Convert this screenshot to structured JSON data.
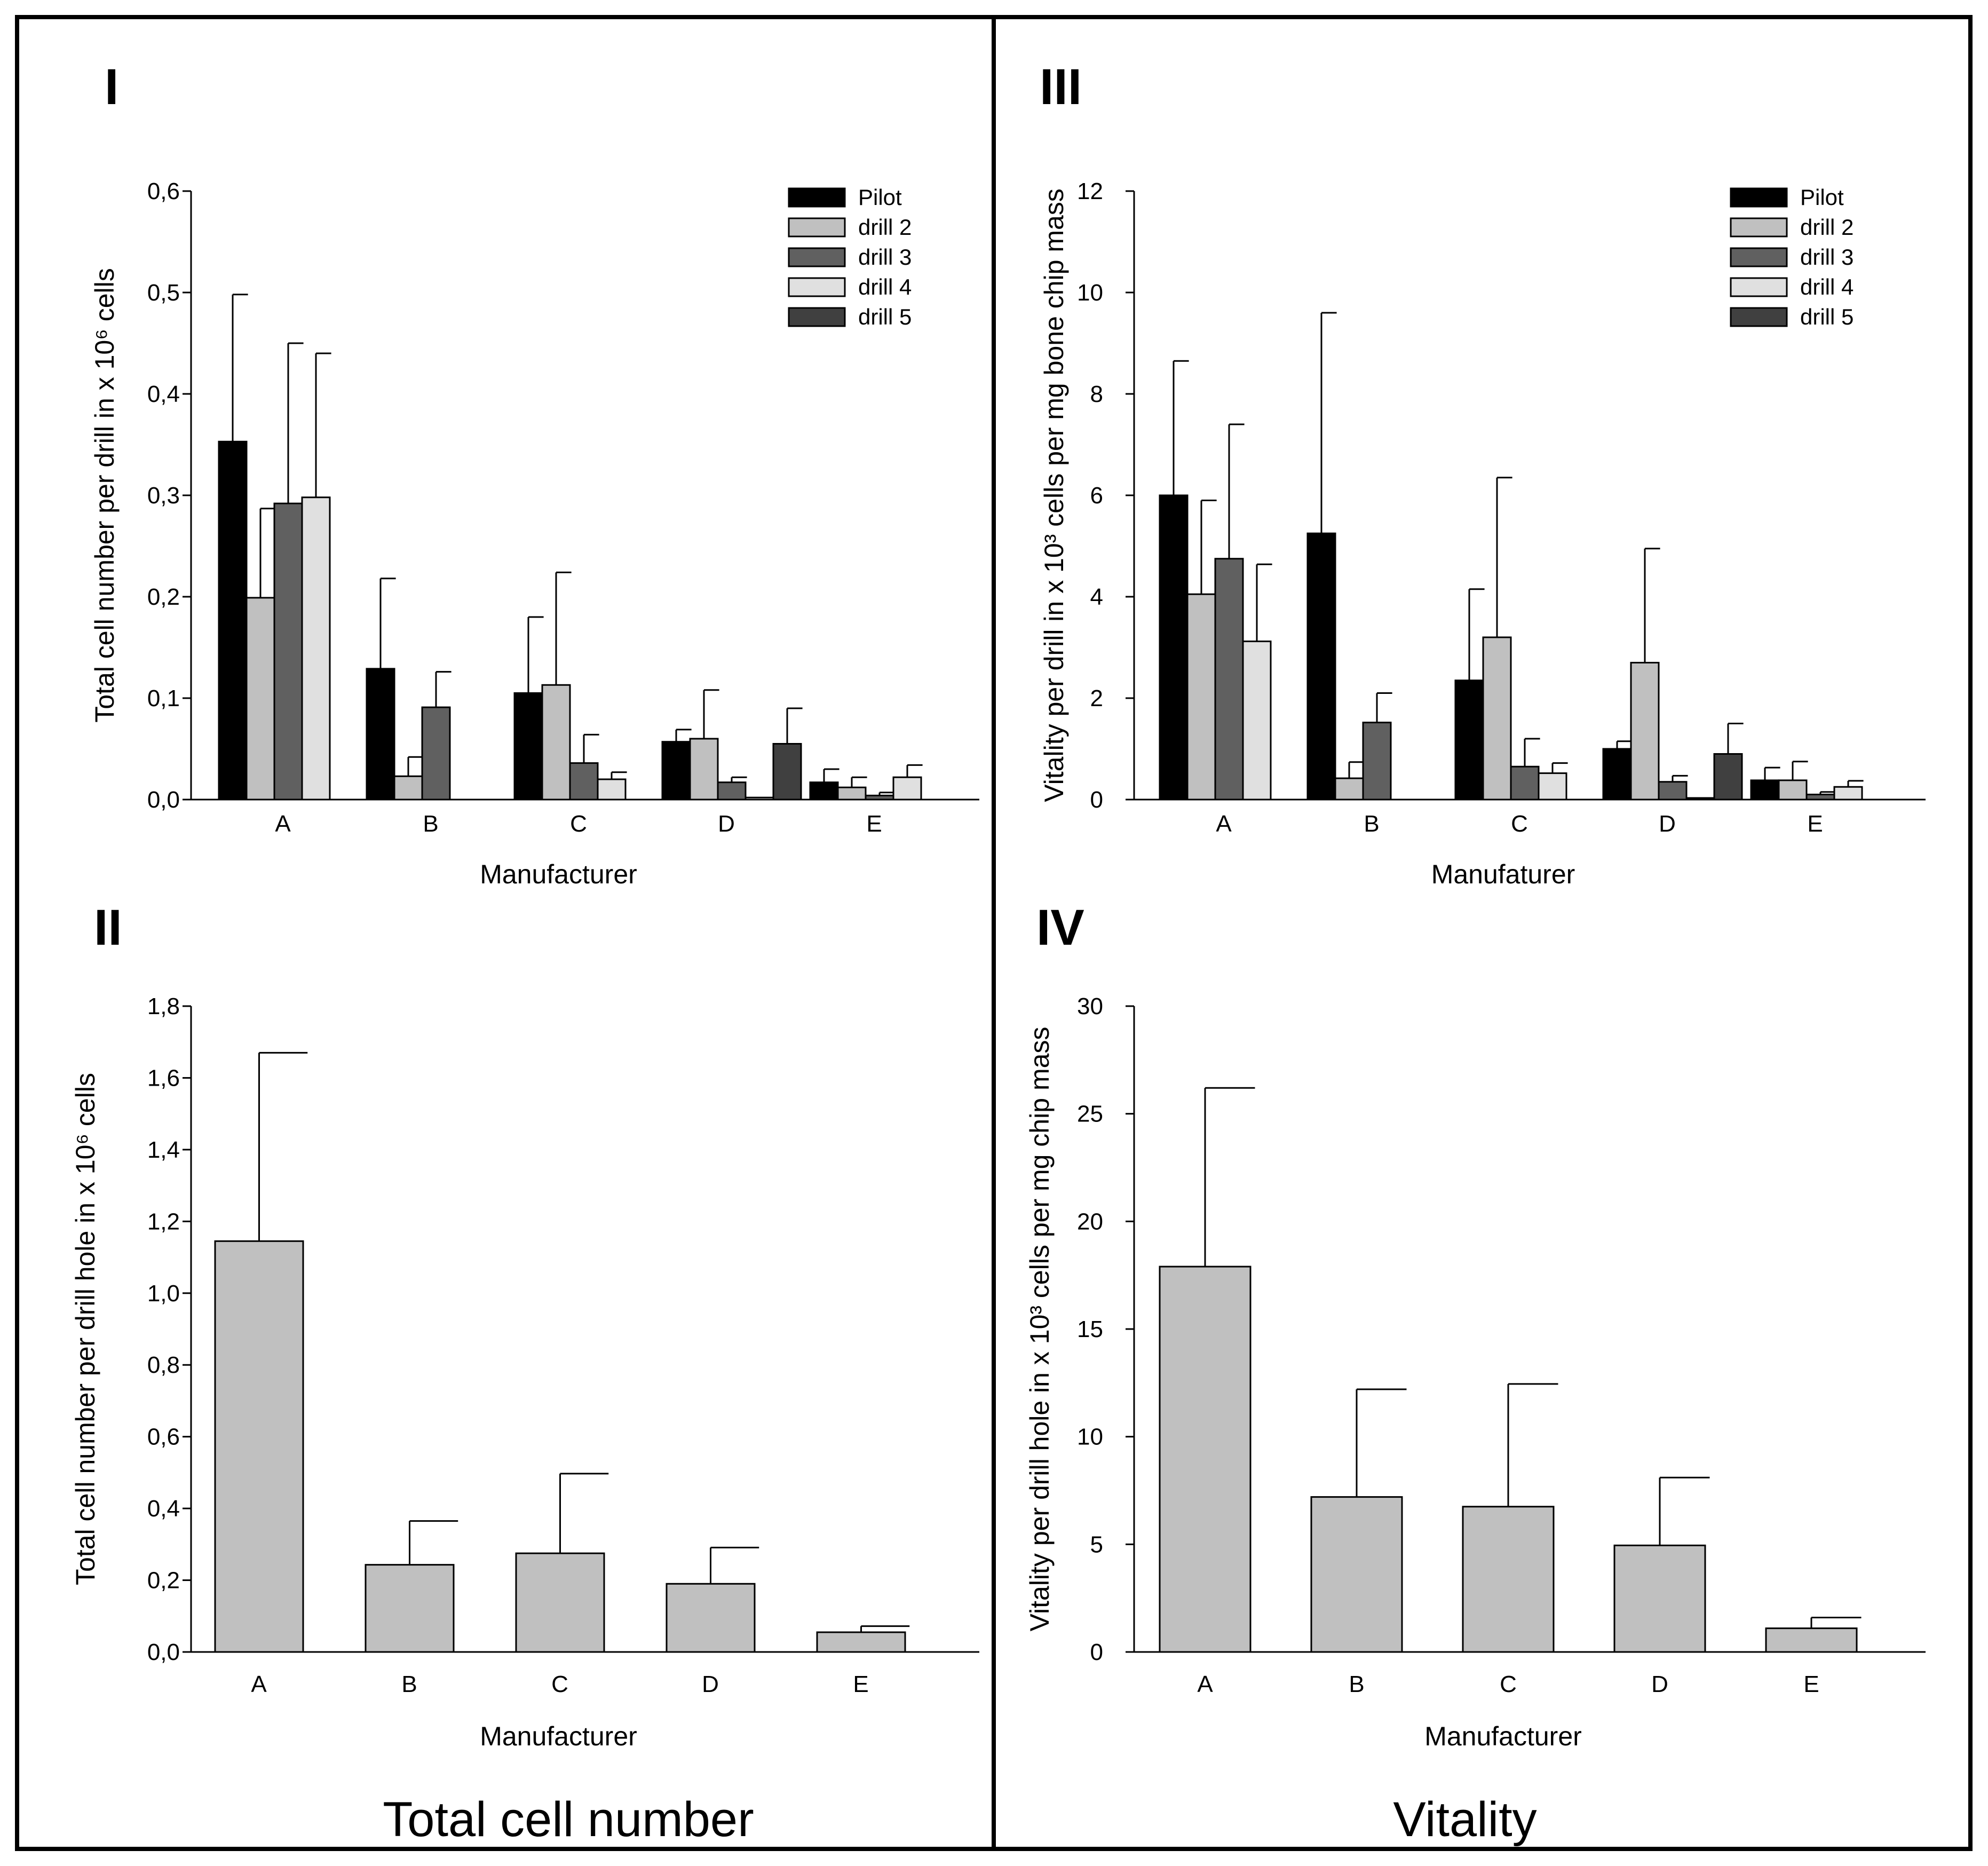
{
  "colors": {
    "Pilot": "#000000",
    "drill 2": "#c0c0c0",
    "drill 3": "#606060",
    "drill 4": "#e0e0e0",
    "drill 5": "#404040",
    "single": "#c0c0c0"
  },
  "captions": {
    "left": "Total cell number",
    "right": "Vitality"
  },
  "chart_data": [
    {
      "panel": "I",
      "type": "bar",
      "categories": [
        "A",
        "B",
        "C",
        "D",
        "E"
      ],
      "xlabel": "Manufacturer",
      "ylabel": "Total cell number per drill  in x 10⁶ cells",
      "ylim": [
        0,
        0.6
      ],
      "yticks": [
        "0,0",
        "0,1",
        "0,2",
        "0,3",
        "0,4",
        "0,5",
        "0,6"
      ],
      "ytick_values": [
        0,
        0.1,
        0.2,
        0.3,
        0.4,
        0.5,
        0.6
      ],
      "legend": [
        "Pilot",
        "drill 2",
        "drill 3",
        "drill 4",
        "drill 5"
      ],
      "legend_position": "top-right",
      "series": [
        {
          "name": "Pilot",
          "values": [
            0.353,
            0.129,
            0.105,
            0.057,
            0.017
          ],
          "errors": [
            0.145,
            0.089,
            0.075,
            0.012,
            0.013
          ]
        },
        {
          "name": "drill 2",
          "values": [
            0.199,
            0.023,
            0.113,
            0.06,
            0.012
          ],
          "errors": [
            0.088,
            0.019,
            0.111,
            0.048,
            0.01
          ]
        },
        {
          "name": "drill 3",
          "values": [
            0.292,
            0.091,
            0.036,
            0.017,
            0.004
          ],
          "errors": [
            0.158,
            0.035,
            0.028,
            0.005,
            0.003
          ]
        },
        {
          "name": "drill 4",
          "values": [
            0.298,
            null,
            0.02,
            0.002,
            0.022
          ],
          "errors": [
            0.142,
            null,
            0.007,
            0.0,
            0.012
          ]
        },
        {
          "name": "drill 5",
          "values": [
            null,
            null,
            null,
            0.055,
            null
          ],
          "errors": [
            null,
            null,
            null,
            0.035,
            null
          ]
        }
      ]
    },
    {
      "panel": "II",
      "type": "bar",
      "categories": [
        "A",
        "B",
        "C",
        "D",
        "E"
      ],
      "xlabel": "Manufacturer",
      "ylabel": "Total cell number per drill hole in x 10⁶ cells",
      "ylim": [
        0,
        1.8
      ],
      "yticks": [
        "0,0",
        "0,2",
        "0,4",
        "0,6",
        "0,8",
        "1,0",
        "1,2",
        "1,4",
        "1,6",
        "1,8"
      ],
      "ytick_values": [
        0,
        0.2,
        0.4,
        0.6,
        0.8,
        1.0,
        1.2,
        1.4,
        1.6,
        1.8
      ],
      "series": [
        {
          "name": "total",
          "values": [
            1.145,
            0.243,
            0.275,
            0.19,
            0.055
          ],
          "errors": [
            0.525,
            0.122,
            0.222,
            0.101,
            0.017
          ]
        }
      ]
    },
    {
      "panel": "III",
      "type": "bar",
      "categories": [
        "A",
        "B",
        "C",
        "D",
        "E"
      ],
      "xlabel": "Manufaturer",
      "ylabel": "Vitality per drill in x 10³ cells per mg bone chip mass",
      "ylim": [
        0,
        12
      ],
      "yticks": [
        "0",
        "2",
        "4",
        "6",
        "8",
        "10",
        "12"
      ],
      "ytick_values": [
        0,
        2,
        4,
        6,
        8,
        10,
        12
      ],
      "legend": [
        "Pilot",
        "drill 2",
        "drill 3",
        "drill 4",
        "drill 5"
      ],
      "legend_position": "top-right",
      "series": [
        {
          "name": "Pilot",
          "values": [
            6.0,
            5.25,
            2.35,
            1.0,
            0.38
          ],
          "errors": [
            2.65,
            4.35,
            1.8,
            0.15,
            0.25
          ]
        },
        {
          "name": "drill 2",
          "values": [
            4.05,
            0.42,
            3.2,
            2.7,
            0.38
          ],
          "errors": [
            1.85,
            0.32,
            3.15,
            2.25,
            0.37
          ]
        },
        {
          "name": "drill 3",
          "values": [
            4.75,
            1.52,
            0.65,
            0.35,
            0.1
          ],
          "errors": [
            2.65,
            0.58,
            0.55,
            0.12,
            0.05
          ]
        },
        {
          "name": "drill 4",
          "values": [
            3.12,
            null,
            0.52,
            0.03,
            0.25
          ],
          "errors": [
            1.52,
            null,
            0.2,
            0.0,
            0.12
          ]
        },
        {
          "name": "drill 5",
          "values": [
            null,
            null,
            null,
            0.9,
            null
          ],
          "errors": [
            null,
            null,
            null,
            0.6,
            null
          ]
        }
      ]
    },
    {
      "panel": "IV",
      "type": "bar",
      "categories": [
        "A",
        "B",
        "C",
        "D",
        "E"
      ],
      "xlabel": "Manufacturer",
      "ylabel": "Vitality per drill hole in x 10³ cells per mg chip mass",
      "ylim": [
        0,
        30
      ],
      "yticks": [
        "0",
        "5",
        "10",
        "15",
        "20",
        "25",
        "30"
      ],
      "ytick_values": [
        0,
        5,
        10,
        15,
        20,
        25,
        30
      ],
      "series": [
        {
          "name": "vitality",
          "values": [
            17.9,
            7.2,
            6.75,
            4.95,
            1.1
          ],
          "errors": [
            8.3,
            5.0,
            5.7,
            3.15,
            0.5
          ]
        }
      ]
    }
  ]
}
